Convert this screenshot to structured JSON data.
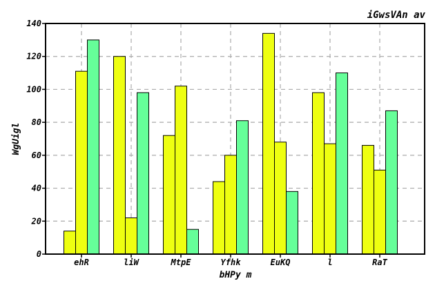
{
  "chart_data": {
    "type": "bar",
    "title": "iGwsVAn av",
    "xlabel": "bHPy m",
    "ylabel": "WgUigl",
    "categories": [
      "ehR",
      "liW",
      "MtpE",
      "Yfhk",
      "EuKQ",
      "l",
      "RaT"
    ],
    "series": [
      {
        "values": [
          14,
          120,
          72,
          44,
          134,
          98,
          66
        ],
        "color": "#eeff11"
      },
      {
        "values": [
          111,
          22,
          102,
          60,
          68,
          67,
          51
        ],
        "color": "#eeff11"
      },
      {
        "values": [
          130,
          98,
          15,
          81,
          38,
          110,
          87
        ],
        "color": "#66ff99"
      }
    ],
    "ylim": [
      0,
      140
    ],
    "yticks": [
      0,
      20,
      40,
      60,
      80,
      100,
      120,
      140
    ],
    "grid": true
  }
}
